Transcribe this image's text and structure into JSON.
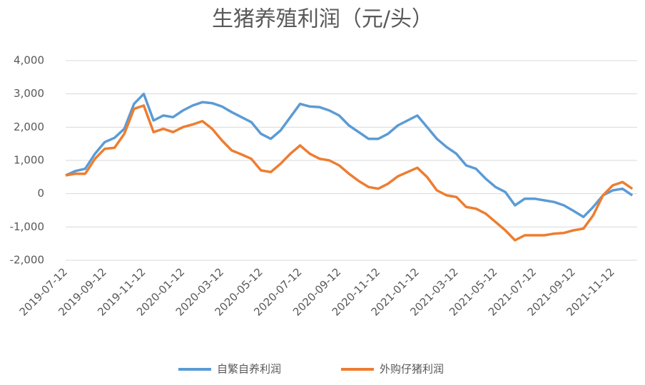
{
  "chart_data": {
    "type": "line",
    "title": "生猪养殖利润（元/头）",
    "categories": [
      "2019-07-12",
      null,
      null,
      null,
      "2019-09-12",
      null,
      null,
      null,
      "2019-11-12",
      null,
      null,
      null,
      "2020-01-12",
      null,
      null,
      null,
      "2020-03-12",
      null,
      null,
      null,
      "2020-05-12",
      null,
      null,
      null,
      "2020-07-12",
      null,
      null,
      null,
      "2020-09-12",
      null,
      null,
      null,
      "2020-11-12",
      null,
      null,
      null,
      "2021-01-12",
      null,
      null,
      null,
      "2021-03-12",
      null,
      null,
      null,
      "2021-05-12",
      null,
      null,
      null,
      "2021-07-12",
      null,
      null,
      null,
      "2021-09-12",
      null,
      null,
      null,
      "2021-11-12",
      null,
      null
    ],
    "series": [
      {
        "name": "自繁自养利润",
        "color": "#5b9bd5",
        "values": [
          550,
          680,
          750,
          1200,
          1550,
          1680,
          1950,
          2700,
          3000,
          2200,
          2350,
          2300,
          2500,
          2650,
          2750,
          2720,
          2620,
          2450,
          2300,
          2150,
          1800,
          1650,
          1900,
          2300,
          2700,
          2620,
          2600,
          2500,
          2350,
          2050,
          1850,
          1650,
          1650,
          1800,
          2050,
          2200,
          2350,
          2000,
          1650,
          1400,
          1200,
          850,
          750,
          450,
          200,
          50,
          -350,
          -150,
          -150,
          -200,
          -250,
          -350,
          -520,
          -700,
          -400,
          -50,
          100,
          150,
          -50
        ]
      },
      {
        "name": "外购仔猪利润",
        "color": "#ed7d31",
        "values": [
          550,
          600,
          600,
          1050,
          1350,
          1380,
          1800,
          2550,
          2650,
          1850,
          1950,
          1850,
          2000,
          2080,
          2180,
          1950,
          1600,
          1300,
          1180,
          1050,
          700,
          650,
          900,
          1200,
          1450,
          1200,
          1050,
          1000,
          850,
          600,
          380,
          200,
          150,
          300,
          520,
          650,
          780,
          500,
          100,
          -50,
          -100,
          -400,
          -450,
          -600,
          -850,
          -1100,
          -1400,
          -1250,
          -1250,
          -1250,
          -1200,
          -1180,
          -1100,
          -1050,
          -650,
          -50,
          250,
          350,
          150
        ]
      }
    ],
    "ylim": [
      -2000,
      4000
    ],
    "yticks": [
      {
        "value": -2000,
        "label": "-2,000"
      },
      {
        "value": -1000,
        "label": "-1,000"
      },
      0,
      {
        "value": 1000,
        "label": "1,000"
      },
      {
        "value": 2000,
        "label": "2,000"
      },
      {
        "value": 3000,
        "label": "3,000"
      },
      {
        "value": 4000,
        "label": "4,000"
      }
    ],
    "grid": true
  }
}
